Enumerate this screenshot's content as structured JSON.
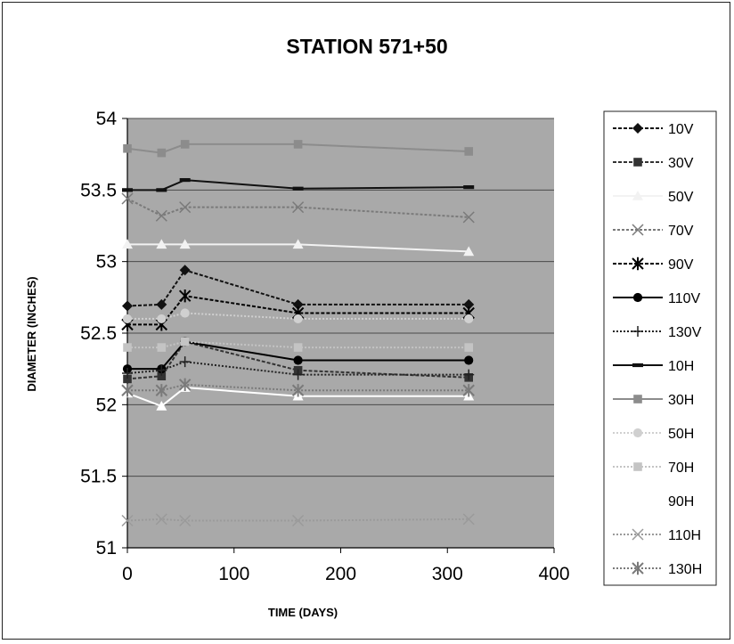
{
  "chart_data": {
    "type": "line",
    "title": "STATION 571+50",
    "xlabel": "TIME (DAYS)",
    "ylabel": "DIAMETER (INCHES)",
    "xlim": [
      0,
      400
    ],
    "ylim": [
      51,
      54
    ],
    "xticks": [
      0,
      100,
      200,
      300,
      400
    ],
    "yticks": [
      51,
      51.5,
      52,
      52.5,
      53,
      53.5,
      54
    ],
    "legend_position": "right",
    "grid": "horizontal",
    "plot_background": "#a9a9a9",
    "series": [
      {
        "name": "10V",
        "color": "#111111",
        "marker": "diamond",
        "dash": "4,2",
        "x": [
          0,
          32,
          54,
          160,
          320
        ],
        "y": [
          52.69,
          52.7,
          52.94,
          52.7,
          52.7
        ]
      },
      {
        "name": "30V",
        "color": "#333333",
        "marker": "square",
        "dash": "4,2",
        "x": [
          0,
          32,
          54,
          160,
          320
        ],
        "y": [
          52.18,
          52.2,
          52.44,
          52.24,
          52.19
        ]
      },
      {
        "name": "50V",
        "color": "#f2f2f2",
        "marker": "triangle",
        "dash": "",
        "x": [
          0,
          32,
          54,
          160,
          320
        ],
        "y": [
          53.12,
          53.12,
          53.12,
          53.12,
          53.07
        ]
      },
      {
        "name": "70V",
        "color": "#7a7a7a",
        "marker": "x",
        "dash": "3,2",
        "x": [
          0,
          32,
          54,
          160,
          320
        ],
        "y": [
          53.44,
          53.32,
          53.38,
          53.38,
          53.31
        ]
      },
      {
        "name": "90V",
        "color": "#000000",
        "marker": "star",
        "dash": "4,2",
        "x": [
          0,
          32,
          54,
          160,
          320
        ],
        "y": [
          52.56,
          52.56,
          52.76,
          52.64,
          52.64
        ]
      },
      {
        "name": "110V",
        "color": "#000000",
        "marker": "circle",
        "dash": "",
        "x": [
          0,
          32,
          54,
          160,
          320
        ],
        "y": [
          52.25,
          52.25,
          52.44,
          52.31,
          52.31
        ]
      },
      {
        "name": "130V",
        "color": "#222222",
        "marker": "plus",
        "dash": "2,2",
        "x": [
          0,
          32,
          54,
          160,
          320
        ],
        "y": [
          52.22,
          52.24,
          52.3,
          52.21,
          52.21
        ]
      },
      {
        "name": "10H",
        "color": "#111111",
        "marker": "dash",
        "dash": "",
        "x": [
          0,
          32,
          54,
          160,
          320
        ],
        "y": [
          53.5,
          53.5,
          53.57,
          53.51,
          53.52
        ]
      },
      {
        "name": "30H",
        "color": "#8c8c8c",
        "marker": "square",
        "dash": "",
        "x": [
          0,
          32,
          54,
          160,
          320
        ],
        "y": [
          53.79,
          53.76,
          53.82,
          53.82,
          53.77
        ]
      },
      {
        "name": "50H",
        "color": "#d0d0d0",
        "marker": "circle",
        "dash": "2,2",
        "x": [
          0,
          32,
          54,
          160,
          320
        ],
        "y": [
          52.6,
          52.6,
          52.64,
          52.6,
          52.6
        ]
      },
      {
        "name": "70H",
        "color": "#c4c4c4",
        "marker": "square",
        "dash": "2,2",
        "x": [
          0,
          32,
          54,
          160,
          320
        ],
        "y": [
          52.4,
          52.4,
          52.44,
          52.4,
          52.4
        ]
      },
      {
        "name": "90H",
        "color": "#ffffff",
        "marker": "triangle",
        "dash": "",
        "x": [
          0,
          32,
          54,
          160,
          320
        ],
        "y": [
          52.08,
          51.99,
          52.12,
          52.06,
          52.06
        ]
      },
      {
        "name": "110H",
        "color": "#9a9a9a",
        "marker": "x",
        "dash": "2,2",
        "x": [
          0,
          32,
          54,
          160,
          320
        ],
        "y": [
          51.19,
          51.2,
          51.19,
          51.19,
          51.2
        ]
      },
      {
        "name": "130H",
        "color": "#7a7a7a",
        "marker": "star",
        "dash": "2,2",
        "x": [
          0,
          32,
          54,
          160,
          320
        ],
        "y": [
          52.1,
          52.1,
          52.14,
          52.1,
          52.1
        ]
      }
    ]
  }
}
